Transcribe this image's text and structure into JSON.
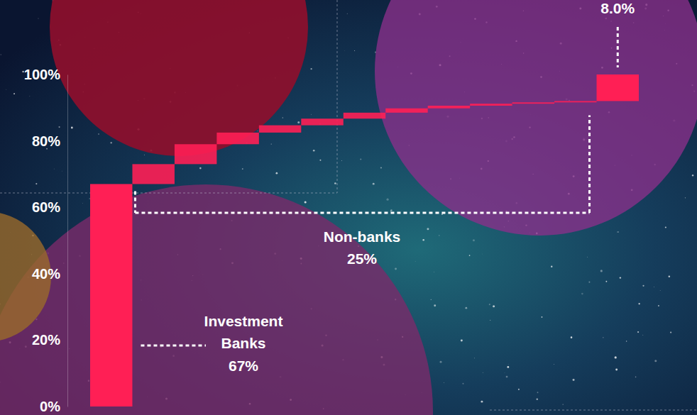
{
  "chart_data": {
    "type": "waterfall",
    "categories": [
      null,
      null,
      null,
      null,
      null,
      null,
      null,
      null,
      null,
      null,
      null,
      null,
      null
    ],
    "values": [
      67,
      6,
      6,
      3.5,
      2.2,
      2,
      1.8,
      1.3,
      0.8,
      0.6,
      0.4,
      0.4,
      8.0
    ],
    "value_labels": [
      "67%",
      null,
      null,
      null,
      null,
      null,
      null,
      null,
      null,
      null,
      null,
      null,
      "8.0%"
    ],
    "color": "#ff1f55",
    "data_labels": true,
    "annotations": [
      {
        "text": "Investment Banks"
      },
      {
        "text": "Non-banks",
        "label": "25%"
      }
    ],
    "ylim": [
      0,
      100
    ],
    "yticks": [
      {
        "value": 0,
        "label": "0%"
      },
      {
        "value": 20,
        "label": "20%"
      },
      {
        "value": 40,
        "label": "40%"
      },
      {
        "value": 60,
        "label": "60%"
      },
      {
        "value": 80,
        "label": "80%"
      },
      {
        "value": 100,
        "label": "100%"
      }
    ],
    "grid": false,
    "tick_labels": "y"
  }
}
